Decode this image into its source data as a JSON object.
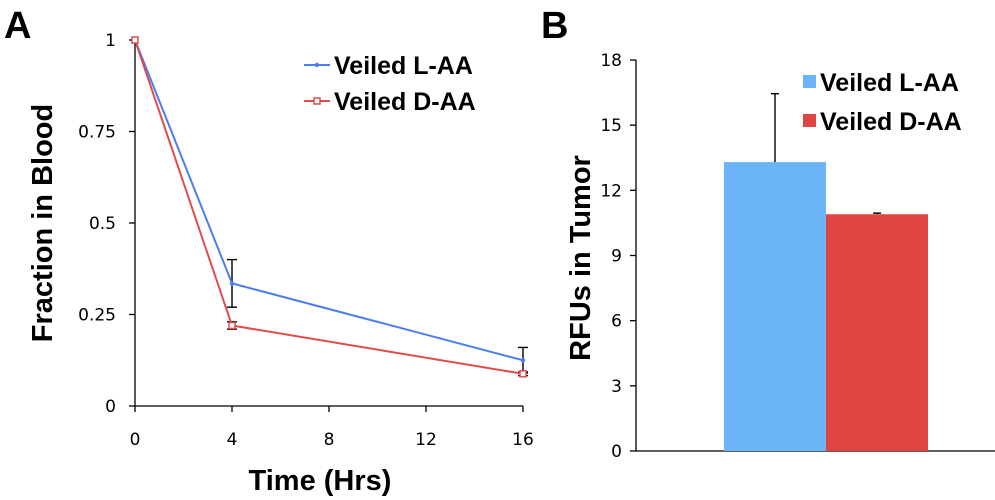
{
  "panel_a_letter": "A",
  "panel_b_letter": "B",
  "colors": {
    "l_aa_line": "#4a7ef0",
    "d_aa_line": "#e04c4c",
    "l_aa_bar": "#6ab4f7",
    "d_aa_bar": "#e04541",
    "axis": "#000000"
  },
  "chart_data": [
    {
      "type": "line",
      "title": "",
      "xlabel": "Time (Hrs)",
      "ylabel": "Fraction in Blood",
      "xlim": [
        0,
        16
      ],
      "ylim": [
        0,
        1
      ],
      "x_ticks": [
        "0",
        "4",
        "8",
        "12",
        "16"
      ],
      "y_ticks": [
        "0",
        "0.25",
        "0.5",
        "0.75",
        "1"
      ],
      "legend_position": "top-right",
      "grid": false,
      "series": [
        {
          "name": "Veiled L-AA",
          "x": [
            0,
            4,
            16
          ],
          "y": [
            1.0,
            0.335,
            0.125
          ],
          "error": [
            0,
            0.065,
            0.035
          ]
        },
        {
          "name": "Veiled D-AA",
          "x": [
            0,
            4,
            16
          ],
          "y": [
            1.0,
            0.22,
            0.088
          ],
          "error": [
            0,
            0.01,
            0.005
          ]
        }
      ]
    },
    {
      "type": "bar",
      "title": "",
      "xlabel": "",
      "ylabel": "RFUs in Tumor",
      "ylim": [
        0,
        18
      ],
      "y_ticks": [
        "0",
        "3",
        "6",
        "9",
        "12",
        "15",
        "18"
      ],
      "legend_position": "top-right",
      "grid": false,
      "series": [
        {
          "name": "Veiled L-AA",
          "values": [
            13.3
          ],
          "error": [
            3.15
          ]
        },
        {
          "name": "Veiled D-AA",
          "values": [
            10.9
          ],
          "error": [
            0.05
          ]
        }
      ]
    }
  ]
}
